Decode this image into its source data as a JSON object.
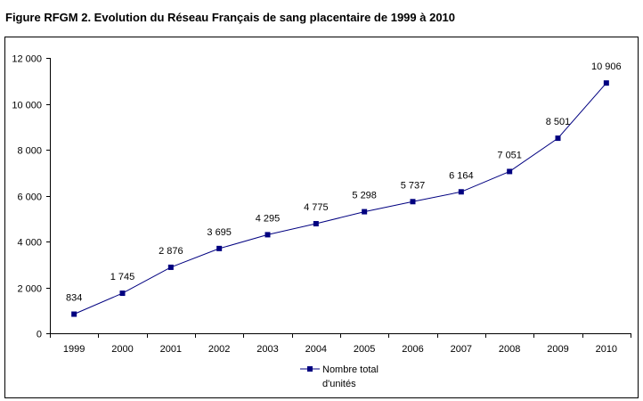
{
  "figure": {
    "title": "Figure RFGM 2. Evolution du Réseau Français de sang placentaire de 1999 à 2010"
  },
  "chart_data": {
    "type": "line",
    "title": "",
    "xlabel": "",
    "ylabel": "",
    "categories": [
      "1999",
      "2000",
      "2001",
      "2002",
      "2003",
      "2004",
      "2005",
      "2006",
      "2007",
      "2008",
      "2009",
      "2010"
    ],
    "series": [
      {
        "name": "Nombre total d'unités",
        "name_lines": [
          "Nombre total",
          "d'unités"
        ],
        "values": [
          834,
          1745,
          2876,
          3695,
          4295,
          4775,
          5298,
          5737,
          6164,
          7051,
          8501,
          10906
        ],
        "data_labels": [
          "834",
          "1 745",
          "2 876",
          "3 695",
          "4 295",
          "4 775",
          "5 298",
          "5 737",
          "6 164",
          "7 051",
          "8 501",
          "10 906"
        ],
        "color": "#000080"
      }
    ],
    "ylim": [
      0,
      12000
    ],
    "yticks": [
      0,
      2000,
      4000,
      6000,
      8000,
      10000,
      12000
    ],
    "ytick_labels": [
      "0",
      "2 000",
      "4 000",
      "6 000",
      "8 000",
      "10 000",
      "12 000"
    ],
    "grid": false,
    "legend_position": "bottom-center"
  }
}
